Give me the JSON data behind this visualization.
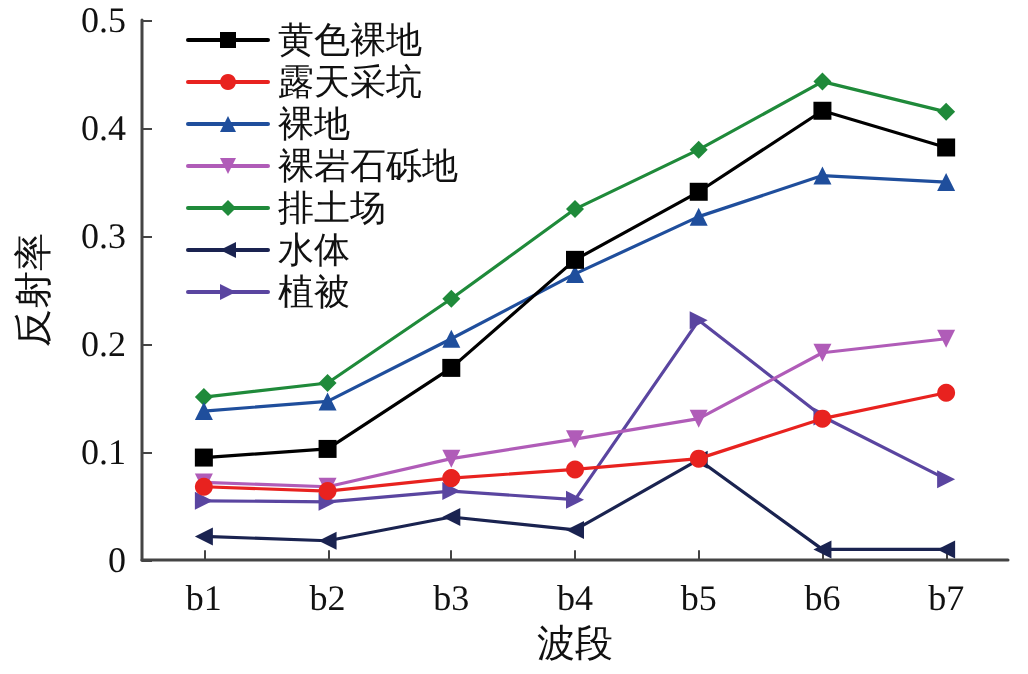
{
  "chart_data": {
    "type": "line",
    "xlabel": "波段",
    "ylabel": "反射率",
    "categories": [
      "b1",
      "b2",
      "b3",
      "b4",
      "b5",
      "b6",
      "b7"
    ],
    "ylim": [
      0,
      0.5
    ],
    "yticks": [
      0,
      0.1,
      0.2,
      0.3,
      0.4,
      0.5
    ],
    "grid": false,
    "legend": "top left",
    "line_style": "solid",
    "series": [
      {
        "name": "黄色裸地",
        "color": "#000000",
        "marker": "square",
        "values": [
          0.095,
          0.103,
          0.178,
          0.278,
          0.341,
          0.416,
          0.382
        ]
      },
      {
        "name": "露天采坑",
        "color": "#e8221f",
        "marker": "circle",
        "values": [
          0.068,
          0.064,
          0.076,
          0.084,
          0.094,
          0.131,
          0.155
        ]
      },
      {
        "name": "裸地",
        "color": "#1f4e9c",
        "marker": "triangle",
        "values": [
          0.138,
          0.147,
          0.205,
          0.265,
          0.318,
          0.356,
          0.35
        ]
      },
      {
        "name": "裸岩石砾地",
        "color": "#b05cb8",
        "marker": "triangle-down",
        "values": [
          0.072,
          0.068,
          0.094,
          0.112,
          0.131,
          0.192,
          0.205
        ]
      },
      {
        "name": "排土场",
        "color": "#1f8a3a",
        "marker": "diamond",
        "values": [
          0.151,
          0.164,
          0.242,
          0.325,
          0.38,
          0.443,
          0.415
        ]
      },
      {
        "name": "水体",
        "color": "#1a2350",
        "marker": "triangle-left",
        "values": [
          0.022,
          0.018,
          0.04,
          0.028,
          0.093,
          0.01,
          0.01
        ]
      },
      {
        "name": "植被",
        "color": "#5a45a0",
        "marker": "triangle-right",
        "values": [
          0.055,
          0.054,
          0.064,
          0.056,
          0.222,
          0.133,
          0.075
        ]
      }
    ]
  }
}
